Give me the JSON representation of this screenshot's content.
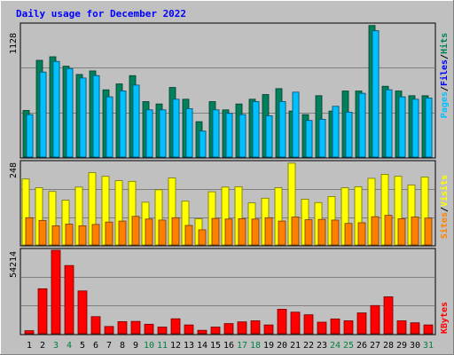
{
  "colors": {
    "background": "#c0c0c0",
    "plot_bg": "#c0c0c0",
    "title": "#0000ff",
    "hits_bar": "#00805c",
    "files_bar": "#00c0ff",
    "pages_bar": "#00c0ff",
    "visits_bar": "#ffff00",
    "sites_bar": "#ff8000",
    "kbytes_bar": "#ff0000",
    "weekday_label": "#000000",
    "weekend_label": "#008040",
    "hits_label": "#00805c",
    "files_label": "#0000ff",
    "pages_label": "#00c0ff",
    "visits_label": "#ffff00",
    "sites_label": "#ff8000",
    "kbytes_label": "#ff0000"
  },
  "chart_data": [
    {
      "type": "bar",
      "title": "Daily usage for December 2022",
      "panel": "hits-files-pages",
      "ymax_label": "1128",
      "ylim": [
        0,
        1128
      ],
      "legend": [
        "Pages",
        "Files",
        "Hits"
      ],
      "categories": [
        "1",
        "2",
        "3",
        "4",
        "5",
        "6",
        "7",
        "8",
        "9",
        "10",
        "11",
        "12",
        "13",
        "14",
        "15",
        "16",
        "17",
        "18",
        "19",
        "20",
        "21",
        "22",
        "23",
        "24",
        "25",
        "26",
        "27",
        "28",
        "29",
        "30",
        "31"
      ],
      "weekend_days": [
        3,
        4,
        10,
        11,
        17,
        18,
        24,
        25,
        31
      ],
      "series": [
        {
          "name": "Hits",
          "values": [
            395,
            820,
            850,
            770,
            700,
            730,
            570,
            620,
            690,
            470,
            450,
            590,
            490,
            300,
            470,
            400,
            450,
            490,
            530,
            580,
            390,
            360,
            520,
            390,
            560,
            560,
            1115,
            600,
            560,
            520,
            520
          ]
        },
        {
          "name": "Files",
          "values": [
            360,
            720,
            810,
            750,
            670,
            690,
            510,
            560,
            610,
            400,
            400,
            490,
            410,
            220,
            400,
            370,
            360,
            470,
            350,
            470,
            550,
            310,
            320,
            430,
            380,
            540,
            1070,
            570,
            510,
            490,
            500
          ]
        },
        {
          "name": "Pages",
          "values": [
            360,
            720,
            810,
            750,
            670,
            690,
            510,
            560,
            610,
            400,
            400,
            490,
            410,
            220,
            400,
            370,
            360,
            470,
            350,
            470,
            550,
            310,
            320,
            430,
            380,
            540,
            1070,
            570,
            510,
            490,
            500
          ]
        }
      ]
    },
    {
      "type": "bar",
      "panel": "visits-sites",
      "ymax_label": "248",
      "ylim": [
        0,
        248
      ],
      "legend": [
        "Sites",
        "Visits"
      ],
      "categories": [
        "1",
        "2",
        "3",
        "4",
        "5",
        "6",
        "7",
        "8",
        "9",
        "10",
        "11",
        "12",
        "13",
        "14",
        "15",
        "16",
        "17",
        "18",
        "19",
        "20",
        "21",
        "22",
        "23",
        "24",
        "25",
        "26",
        "27",
        "28",
        "29",
        "30",
        "31"
      ],
      "series": [
        {
          "name": "Visits",
          "values": [
            196,
            170,
            159,
            133,
            172,
            215,
            204,
            191,
            189,
            127,
            164,
            199,
            130,
            78,
            158,
            172,
            173,
            125,
            139,
            170,
            243,
            136,
            126,
            144,
            170,
            173,
            198,
            210,
            204,
            178,
            202
          ]
        },
        {
          "name": "Sites",
          "values": [
            81,
            73,
            57,
            62,
            57,
            61,
            68,
            71,
            85,
            77,
            74,
            81,
            58,
            45,
            79,
            77,
            78,
            77,
            81,
            71,
            83,
            75,
            76,
            74,
            64,
            66,
            84,
            88,
            78,
            83,
            80
          ]
        }
      ]
    },
    {
      "type": "bar",
      "panel": "kbytes",
      "ymax_label": "54214",
      "ylim": [
        0,
        54214
      ],
      "legend": [
        "KBytes"
      ],
      "categories": [
        "1",
        "2",
        "3",
        "4",
        "5",
        "6",
        "7",
        "8",
        "9",
        "10",
        "11",
        "12",
        "13",
        "14",
        "15",
        "16",
        "17",
        "18",
        "19",
        "20",
        "21",
        "22",
        "23",
        "24",
        "25",
        "26",
        "27",
        "28",
        "29",
        "30",
        "31"
      ],
      "series": [
        {
          "name": "KBytes",
          "values": [
            1950,
            29200,
            54214,
            44300,
            27800,
            11100,
            4700,
            7850,
            8000,
            6150,
            4300,
            9700,
            5700,
            2200,
            4300,
            6600,
            7700,
            8400,
            5700,
            15900,
            14000,
            12300,
            7500,
            9600,
            8400,
            13500,
            18300,
            24000,
            8400,
            7100,
            5700
          ]
        }
      ]
    }
  ]
}
